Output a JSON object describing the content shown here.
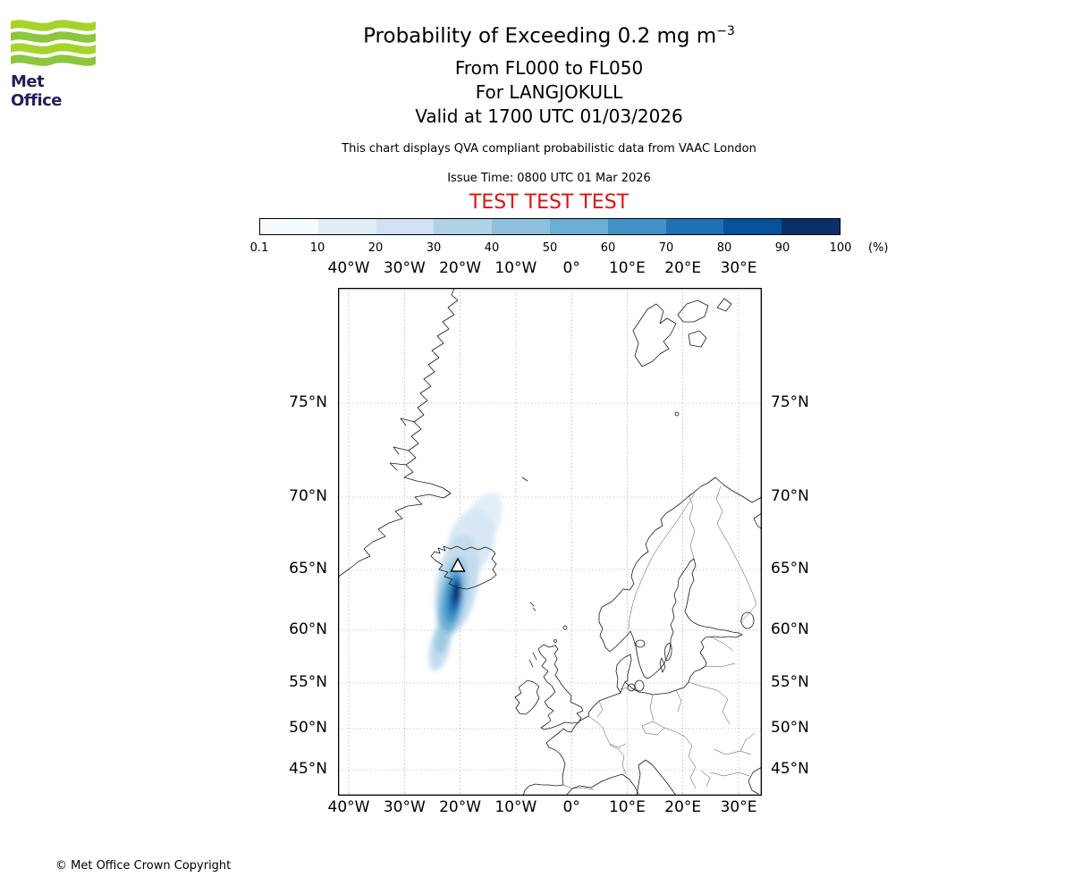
{
  "logo": {
    "brand": "Met Office"
  },
  "header": {
    "title_main": "Probability of Exceeding 0.2 mg m",
    "title_sup": "−3",
    "subtitle1": "From FL000 to FL050",
    "subtitle2": "For LANGJOKULL",
    "subtitle3": "Valid at 1700 UTC 01/03/2026",
    "description": "This chart displays QVA compliant probabilistic data from VAAC London",
    "issue_time": "Issue Time: 0800 UTC 01 Mar 2026",
    "test_banner": "TEST TEST TEST",
    "test_color": "#e01010"
  },
  "colorbar": {
    "tick_labels": [
      "0.1",
      "10",
      "20",
      "30",
      "40",
      "50",
      "60",
      "70",
      "80",
      "90",
      "100"
    ],
    "unit": "(%)",
    "colors": [
      "#f7fbff",
      "#e2edf8",
      "#cfe1f2",
      "#b0d2e7",
      "#8fc0dd",
      "#6baed6",
      "#4292c6",
      "#2171b5",
      "#08519c",
      "#08306b"
    ]
  },
  "map": {
    "lon_labels": [
      "40°W",
      "30°W",
      "20°W",
      "10°W",
      "0°",
      "10°E",
      "20°E",
      "30°E"
    ],
    "lat_labels": [
      "75°N",
      "70°N",
      "65°N",
      "60°N",
      "55°N",
      "50°N",
      "45°N"
    ]
  },
  "footer": {
    "copyright": "© Met Office Crown Copyright"
  },
  "chart_data": {
    "type": "heatmap",
    "subtype": "geographic probability plume chart",
    "projection": "mercator",
    "title": "Probability of Exceeding 0.2 mg m⁻³",
    "flight_levels": "From FL000 to FL050",
    "volcano": "LANGJOKULL",
    "valid_time": "1700 UTC 01/03/2026",
    "issue_time": "0800 UTC 01 Mar 2026",
    "source_note": "This chart displays QVA compliant probabilistic data from VAAC London",
    "status": "TEST TEST TEST",
    "colorbar": {
      "unit": "(%)",
      "tick_values": [
        0.1,
        10,
        20,
        30,
        40,
        50,
        60,
        70,
        80,
        90,
        100
      ],
      "colors": [
        "#f7fbff",
        "#e2edf8",
        "#cfe1f2",
        "#b0d2e7",
        "#8fc0dd",
        "#6baed6",
        "#4292c6",
        "#2171b5",
        "#08519c",
        "#08306b"
      ]
    },
    "x_axis": {
      "tick_labels": [
        "40°W",
        "30°W",
        "20°W",
        "10°W",
        "0°",
        "10°E",
        "20°E",
        "30°E"
      ],
      "range": [
        "42°W",
        "34°E"
      ]
    },
    "y_axis": {
      "tick_labels": [
        "75°N",
        "70°N",
        "65°N",
        "60°N",
        "55°N",
        "50°N",
        "45°N"
      ],
      "range": [
        "42°N",
        "79.5°N"
      ]
    },
    "plume": {
      "description": "Blue ash-probability plume centred on Iceland, extending south-southwest from about 67°N to 58°N near 20°W; highest probabilities (dark navy, ~90-100%) just south of the volcano over southwest Iceland, fading through mid blues to pale blue (<10%) at the fringes",
      "volcano_marker": {
        "symbol": "triangle",
        "name": "LANGJOKULL",
        "approx_position": "64.7°N 20.5°W"
      }
    }
  }
}
